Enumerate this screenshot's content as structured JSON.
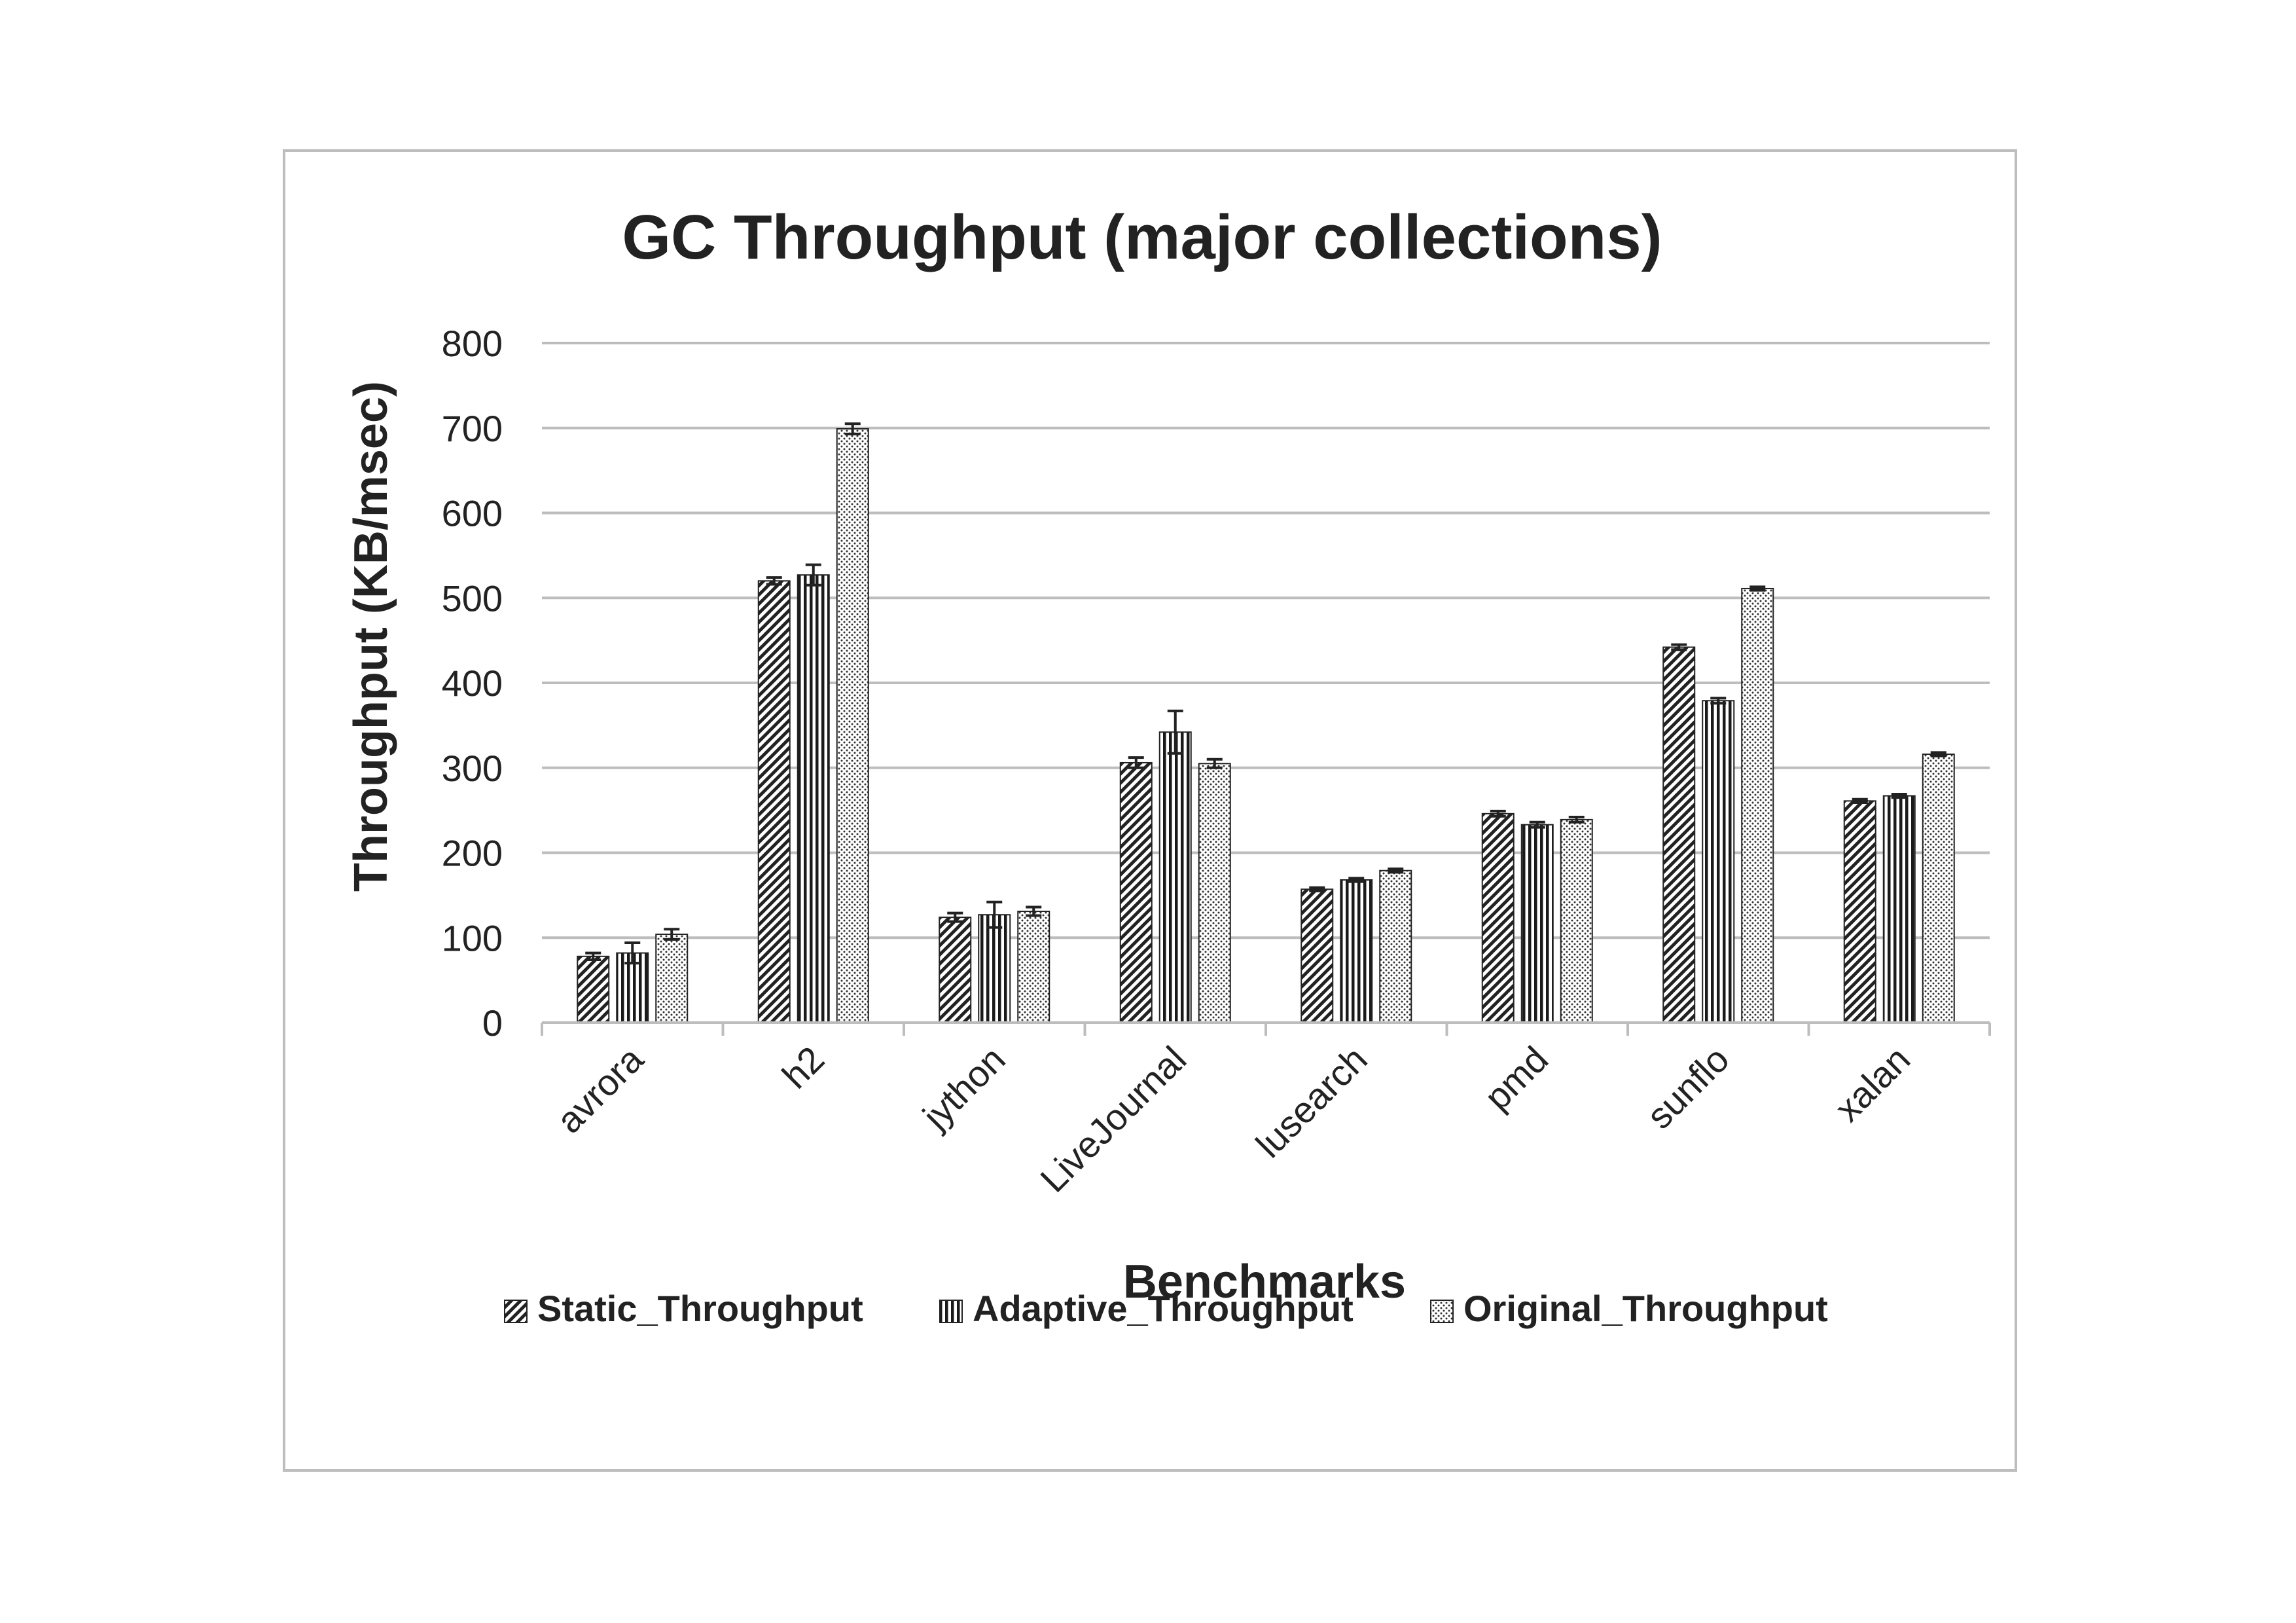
{
  "chart_data": {
    "type": "bar",
    "title": "GC Throughput (major collections)",
    "xlabel": "Benchmarks",
    "ylabel": "Throughput (KB/msec)",
    "ylim": [
      0,
      800
    ],
    "yticks": [
      0,
      100,
      200,
      300,
      400,
      500,
      600,
      700,
      800
    ],
    "grid": true,
    "legend_position": "bottom",
    "categories": [
      "avrora",
      "h2",
      "jython",
      "LiveJournal",
      "lusearch",
      "pmd",
      "sunflo",
      "xalan"
    ],
    "series": [
      {
        "name": "Static_Throughput",
        "pattern": "diagonal-hatch",
        "values": [
          78,
          520,
          124,
          306,
          157,
          246,
          442,
          261
        ],
        "errors": [
          4,
          4,
          5,
          6,
          2,
          3,
          3,
          2
        ]
      },
      {
        "name": "Adaptive_Throughput",
        "pattern": "vertical-lines",
        "values": [
          82,
          527,
          127,
          342,
          168,
          233,
          379,
          267
        ],
        "errors": [
          12,
          12,
          15,
          25,
          2,
          3,
          3,
          2
        ]
      },
      {
        "name": "Original_Throughput",
        "pattern": "dotted",
        "values": [
          104,
          699,
          131,
          305,
          179,
          239,
          511,
          316
        ],
        "errors": [
          6,
          6,
          5,
          5,
          2,
          3,
          2,
          2
        ]
      }
    ],
    "colors": {
      "ink": "#222222",
      "grid": "#bdbdbd",
      "frame": "#bdbdbd"
    }
  }
}
